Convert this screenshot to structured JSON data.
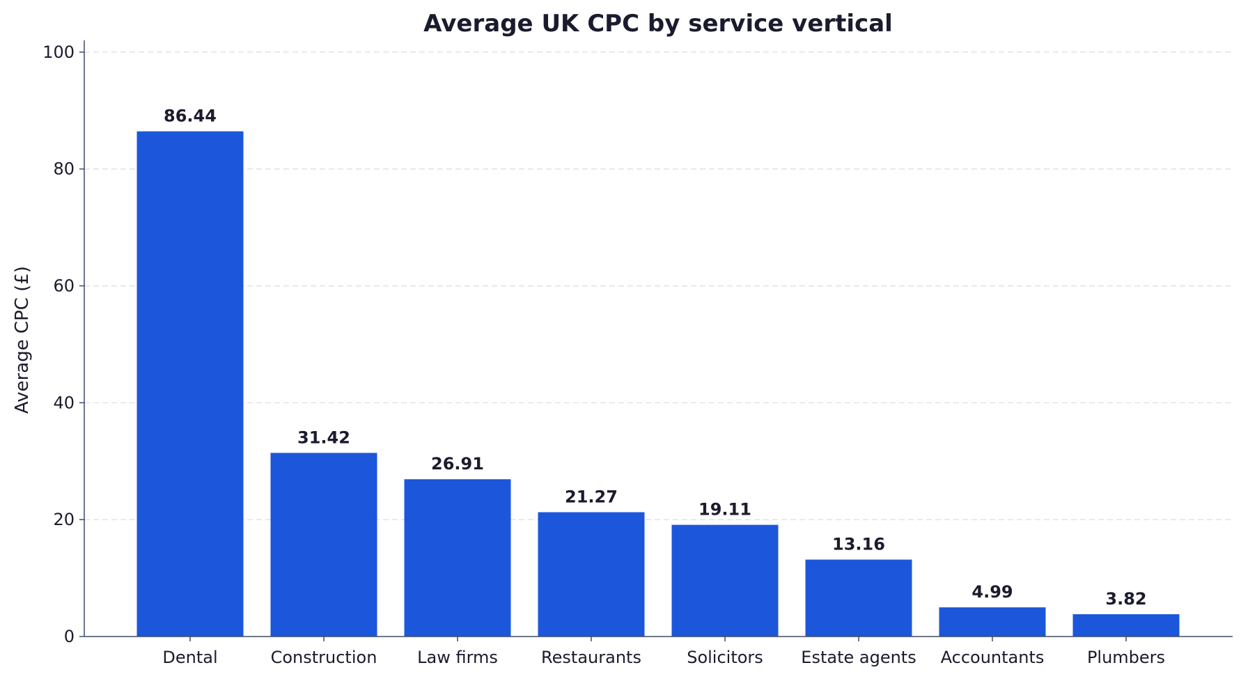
{
  "chart_data": {
    "type": "bar",
    "title": "Average UK CPC by service vertical",
    "xlabel": "",
    "ylabel": "Average CPC (£)",
    "categories": [
      "Dental",
      "Construction",
      "Law firms",
      "Restaurants",
      "Solicitors",
      "Estate agents",
      "Accountants",
      "Plumbers"
    ],
    "values": [
      86.44,
      31.42,
      26.91,
      21.27,
      19.11,
      13.16,
      4.99,
      3.82
    ],
    "data_labels": [
      "86.44",
      "31.42",
      "26.91",
      "21.27",
      "19.11",
      "13.16",
      "4.99",
      "3.82"
    ],
    "ylim": [
      0,
      102
    ],
    "yticks": [
      0,
      20,
      40,
      60,
      80,
      100
    ],
    "ytick_labels": [
      "0",
      "20",
      "40",
      "60",
      "80",
      "100"
    ],
    "grid": true,
    "legend": "none",
    "colors": {
      "bar": "#1c57db",
      "text": "#1b1b2e",
      "axis": "#3d4a6b",
      "grid": "#dcdcdc"
    }
  }
}
